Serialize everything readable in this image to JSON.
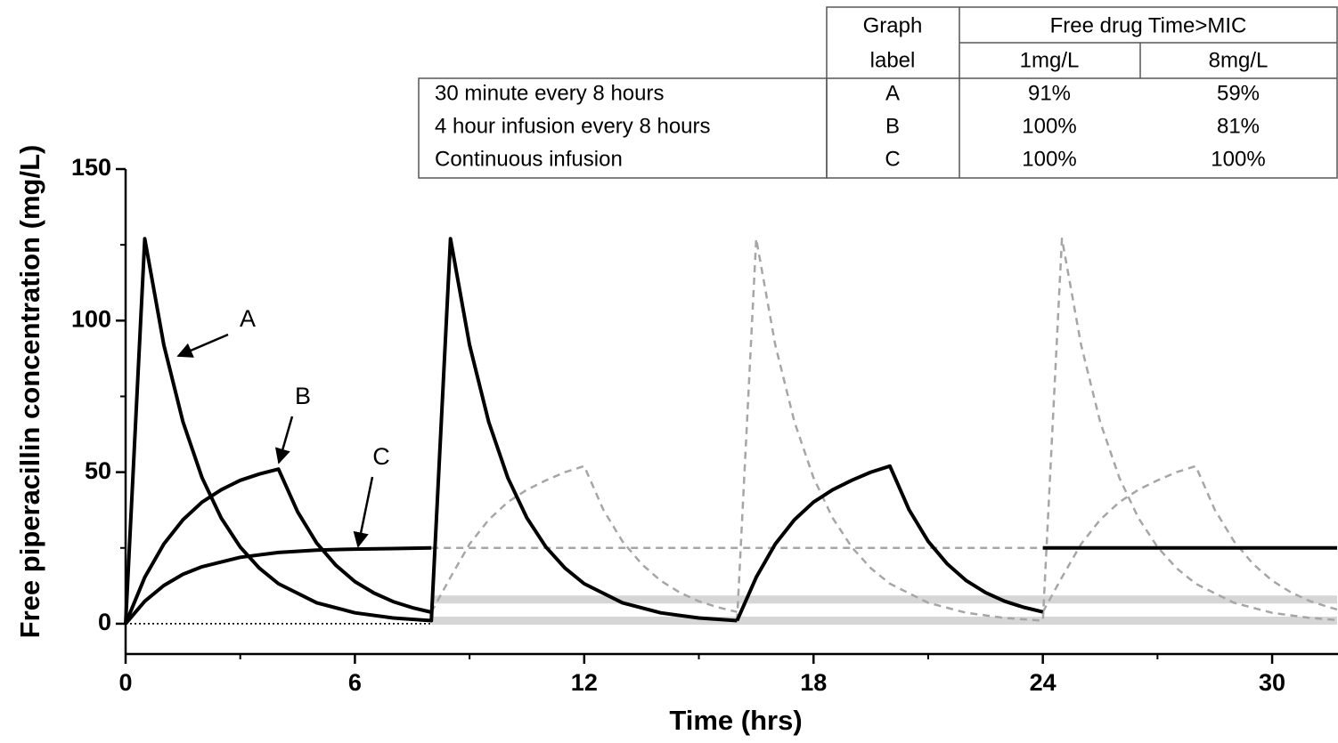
{
  "chart_data": {
    "type": "line",
    "x_label": "Time (hrs)",
    "y_label": "Free piperacillin concentration (mg/L)",
    "xlim": [
      0,
      31.7
    ],
    "ylim": [
      -10,
      150
    ],
    "xticks": [
      0,
      6,
      12,
      18,
      24,
      30
    ],
    "xminorticks": [
      3,
      9,
      15,
      21,
      27
    ],
    "yticks": [
      0,
      50,
      100,
      150
    ],
    "yminorticks": [
      25,
      75,
      125
    ],
    "series": [
      {
        "style": "band",
        "color": "#d6d6d6",
        "x": [
          8,
          31.7
        ],
        "values": [
          1,
          1
        ]
      },
      {
        "style": "band",
        "color": "#d6d6d6",
        "x": [
          8,
          31.7
        ],
        "values": [
          8,
          8
        ]
      },
      {
        "style": "dotted",
        "color": "#000000",
        "x": [
          0,
          8
        ],
        "values": [
          0,
          0
        ]
      },
      {
        "style": "dashed",
        "color": "#a6a6a6",
        "x": [
          16,
          16.5,
          17,
          17.5,
          18,
          18.5,
          19,
          19.5,
          20,
          21,
          22,
          23,
          24,
          24.5,
          25,
          25.5,
          26,
          26.5,
          27,
          27.5,
          28,
          29,
          30,
          31,
          31.7
        ],
        "values": [
          1,
          127,
          92,
          66.6,
          48.2,
          34.9,
          25.3,
          18.3,
          13.2,
          6.9,
          3.6,
          1.9,
          1,
          127,
          92,
          66.6,
          48.2,
          34.9,
          25.3,
          18.3,
          13.2,
          6.9,
          3.6,
          1.9,
          1.2
        ]
      },
      {
        "style": "dashed",
        "color": "#a6a6a6",
        "x": [
          8,
          8.5,
          9,
          9.5,
          10,
          10.5,
          11,
          11.5,
          12,
          12.5,
          13,
          13.5,
          14,
          14.5,
          15,
          15.5,
          16,
          20,
          24,
          24.5,
          25,
          25.5,
          26,
          26.5,
          27,
          27.5,
          28,
          28.5,
          29,
          29.5,
          30,
          30.5,
          31,
          31.5,
          31.7
        ],
        "values": [
          3.8,
          15.3,
          26.3,
          34.3,
          40.1,
          44.2,
          47.3,
          50,
          52,
          37.6,
          27.2,
          19.7,
          14.2,
          10.3,
          7.4,
          5.4,
          3.9,
          null,
          3.9,
          15.3,
          26.3,
          34.3,
          40.1,
          44.2,
          47.3,
          50,
          52,
          37.6,
          27.2,
          19.7,
          14.2,
          10.3,
          7.4,
          5.4,
          4.7
        ]
      },
      {
        "style": "dashed",
        "color": "#a6a6a6",
        "x": [
          8,
          24
        ],
        "values": [
          25,
          25
        ]
      },
      {
        "style": "solid",
        "color": "#000000",
        "x": [
          0,
          0.5,
          1,
          1.5,
          2,
          2.5,
          3,
          3.5,
          4,
          5,
          6,
          7,
          8,
          8.5,
          9,
          9.5,
          10,
          10.5,
          11,
          11.5,
          12,
          13,
          14,
          15,
          16
        ],
        "values": [
          0,
          127,
          92,
          66.6,
          48.2,
          34.9,
          25.3,
          18.3,
          13.2,
          6.9,
          3.6,
          1.9,
          1,
          127,
          92,
          66.6,
          48.2,
          34.9,
          25.3,
          18.3,
          13.2,
          6.9,
          3.6,
          1.9,
          1
        ]
      },
      {
        "style": "solid",
        "color": "#000000",
        "x": [
          0,
          0.5,
          1,
          1.5,
          2,
          2.5,
          3,
          3.5,
          4,
          4.5,
          5,
          5.5,
          6,
          6.5,
          7,
          7.5,
          8,
          12,
          16,
          16.5,
          17,
          17.5,
          18,
          18.5,
          19,
          19.5,
          20,
          20.5,
          21,
          21.5,
          22,
          22.5,
          23,
          23.5,
          24
        ],
        "values": [
          0,
          15.3,
          26.3,
          34.3,
          40.1,
          44.2,
          47.3,
          49.4,
          51,
          36.9,
          26.6,
          19.3,
          13.9,
          10.1,
          7.3,
          5.3,
          3.8,
          null,
          1,
          15.3,
          26.3,
          34.3,
          40.1,
          44.2,
          47.3,
          50,
          52,
          37.6,
          27.2,
          19.7,
          14.2,
          10.3,
          7.4,
          5.4,
          3.9
        ]
      },
      {
        "style": "solid",
        "color": "#000000",
        "x": [
          0,
          0.5,
          1,
          1.5,
          2,
          3,
          4,
          5,
          6,
          7,
          8,
          16,
          24,
          31.7
        ],
        "values": [
          0,
          7.4,
          12.6,
          16.3,
          18.8,
          21.9,
          23.5,
          24.3,
          24.6,
          24.8,
          25,
          null,
          25,
          25
        ]
      }
    ],
    "annotations": [
      "A",
      "B",
      "C"
    ],
    "table": {
      "graph_label_header": [
        "Graph",
        "label"
      ],
      "group_header": "Free drug Time>MIC",
      "columns": [
        "1mg/L",
        "8mg/L"
      ],
      "rows": [
        [
          "30 minute every 8 hours",
          "A",
          "91%",
          "59%"
        ],
        [
          "4 hour infusion every 8 hours",
          "B",
          "100%",
          "81%"
        ],
        [
          "Continuous infusion",
          "C",
          "100%",
          "100%"
        ]
      ]
    }
  }
}
